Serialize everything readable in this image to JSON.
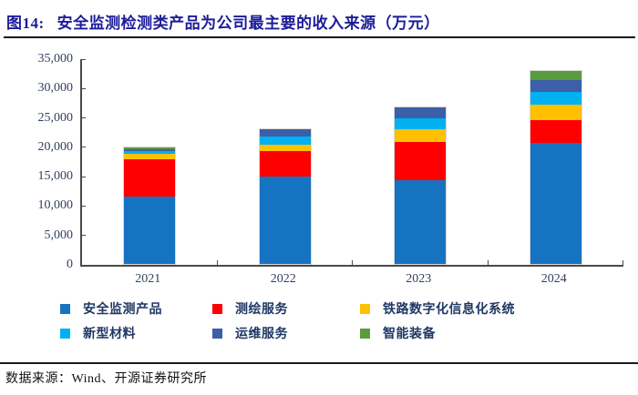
{
  "header": {
    "figure_label": "图14:",
    "title": "安全监测检测类产品为公司最主要的收入来源（万元）",
    "accent_color": "#1c1c99"
  },
  "chart_data": {
    "type": "bar",
    "stacked": true,
    "title": "安全监测检测类产品为公司最主要的收入来源（万元）",
    "unit": "万元",
    "categories": [
      "2021",
      "2022",
      "2023",
      "2024"
    ],
    "series": [
      {
        "key": "safety-monitoring-products",
        "name": "安全监测产品",
        "color": "#1673c2",
        "values": [
          11600,
          15100,
          14400,
          20700
        ]
      },
      {
        "key": "surveying-mapping-services",
        "name": "测绘服务",
        "color": "#fe0000",
        "values": [
          6400,
          4300,
          6500,
          4000
        ]
      },
      {
        "key": "railway-digital-info-systems",
        "name": "铁路数字化信息化系统",
        "color": "#ffc000",
        "values": [
          850,
          1100,
          2200,
          2500
        ]
      },
      {
        "key": "new-materials",
        "name": "新型材料",
        "color": "#00b0f0",
        "values": [
          450,
          1350,
          1800,
          2300
        ]
      },
      {
        "key": "operation-maintenance-services",
        "name": "运维服务",
        "color": "#3b5fa9",
        "values": [
          450,
          1200,
          1950,
          1900
        ]
      },
      {
        "key": "smart-equipment",
        "name": "智能装备",
        "color": "#599c3d",
        "values": [
          350,
          150,
          150,
          1700
        ]
      }
    ],
    "totals": [
      20100,
      23200,
      27000,
      33100
    ],
    "ylim": [
      0,
      35000
    ],
    "y_tick_labels": [
      "35,000",
      "30,000",
      "25,000",
      "20,000",
      "15,000",
      "10,000",
      "5,000",
      "0"
    ],
    "grid": false,
    "legend_position": "bottom"
  },
  "footer": {
    "source_label": "数据来源：",
    "source_text": "Wind、开源证券研究所"
  }
}
